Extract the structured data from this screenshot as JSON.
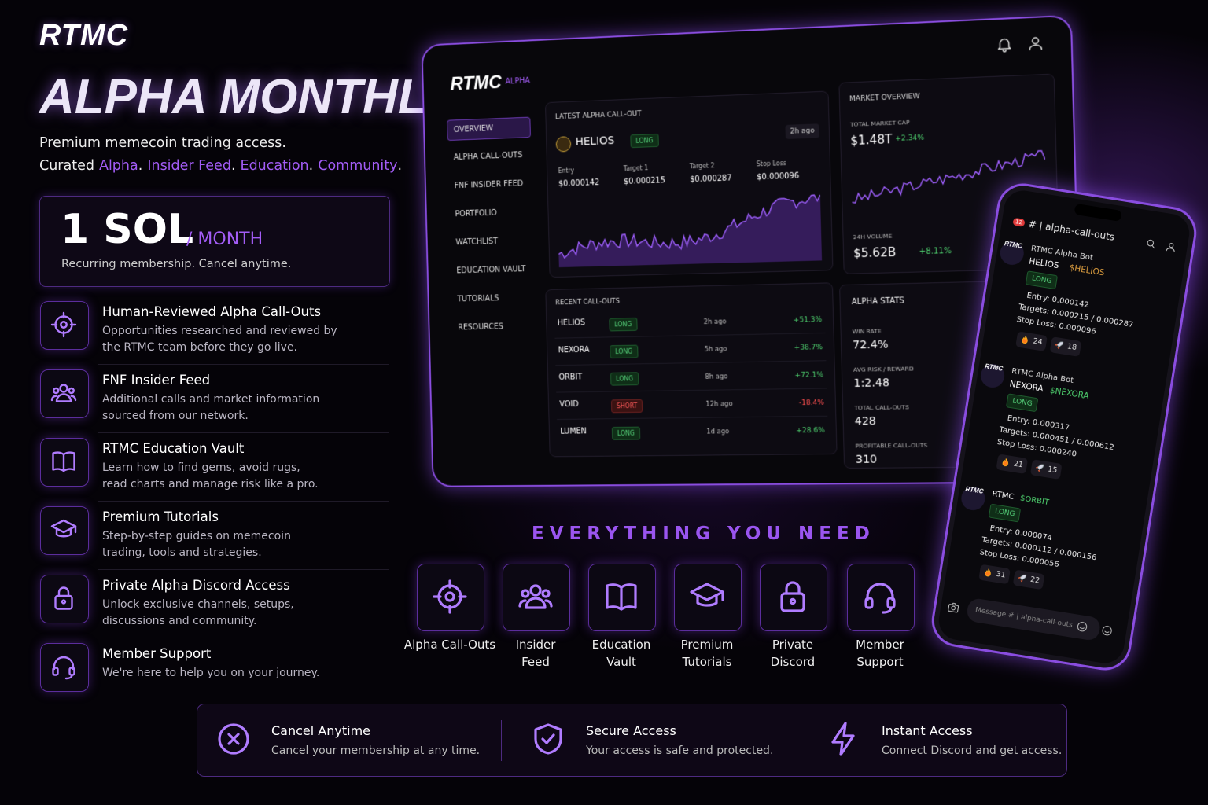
{
  "brand": "RTMC",
  "title": "ALPHA MONTHLY",
  "tagline": "Premium memecoin trading access.",
  "curated": {
    "lead": "Curated",
    "items": [
      "Alpha",
      "Insider Feed",
      "Education",
      "Community"
    ],
    "separator": "."
  },
  "price": {
    "amount": "1 SOL",
    "period": "/ MONTH",
    "note": "Recurring membership. Cancel anytime."
  },
  "features": [
    {
      "title": "Human-Reviewed Alpha Call-Outs",
      "desc": [
        "Opportunities researched and reviewed by",
        "the RTMC team before they go live."
      ]
    },
    {
      "title": "FNF Insider Feed",
      "desc": [
        "Additional calls and market information",
        "sourced from our network."
      ]
    },
    {
      "title": "RTMC Education Vault",
      "desc": [
        "Learn how to find gems, avoid rugs,",
        "read charts and manage risk like a pro."
      ]
    },
    {
      "title": "Premium Tutorials",
      "desc": [
        "Step-by-step guides on memecoin",
        "trading, tools and strategies."
      ]
    },
    {
      "title": "Private Alpha Discord Access",
      "desc": [
        "Unlock exclusive channels, setups,",
        "discussions and community."
      ]
    },
    {
      "title": "Member Support",
      "desc": [
        "We're here to help you on your journey."
      ]
    }
  ],
  "dashboard": {
    "brand": "RTMC",
    "sub": "ALPHA",
    "nav": [
      "OVERVIEW",
      "ALPHA CALL-OUTS",
      "FNF INSIDER FEED",
      "PORTFOLIO",
      "WATCHLIST",
      "EDUCATION VAULT",
      "TUTORIALS",
      "RESOURCES"
    ],
    "latest": {
      "heading": "LATEST ALPHA CALL-OUT",
      "token": "HELIOS",
      "side": "LONG",
      "time": "2h ago",
      "levels": [
        {
          "label": "Entry",
          "value": "$0.000142"
        },
        {
          "label": "Target 1",
          "value": "$0.000215"
        },
        {
          "label": "Target 2",
          "value": "$0.000287"
        },
        {
          "label": "Stop Loss",
          "value": "$0.000096"
        }
      ]
    },
    "market": {
      "heading": "MARKET OVERVIEW",
      "cap_label": "TOTAL MARKET CAP",
      "cap": "$1.48T",
      "cap_change": "+2.34%",
      "vol_label": "24H VOLUME",
      "vol": "$5.62B",
      "vol_change": "+8.11%"
    },
    "recent": {
      "heading": "RECENT CALL-OUTS",
      "rows": [
        [
          "HELIOS",
          "LONG",
          "2h ago",
          "+51.3%"
        ],
        [
          "NEXORA",
          "LONG",
          "5h ago",
          "+38.7%"
        ],
        [
          "ORBIT",
          "LONG",
          "8h ago",
          "+72.1%"
        ],
        [
          "VOID",
          "SHORT",
          "12h ago",
          "-18.4%"
        ],
        [
          "LUMEN",
          "LONG",
          "1d ago",
          "+28.6%"
        ]
      ]
    },
    "stats": {
      "heading": "ALPHA STATS",
      "items": [
        {
          "label": "WIN RATE",
          "value": "72.4%"
        },
        {
          "label": "AVG RISK / REWARD",
          "value": "1:2.48"
        },
        {
          "label": "TOTAL CALL-OUTS",
          "value": "428"
        },
        {
          "label": "PROFITABLE CALL-OUTS",
          "value": "310"
        }
      ]
    }
  },
  "phone": {
    "badge": "12",
    "channel": "# | alpha-call-outs",
    "avatar": "RTMC",
    "messages": [
      {
        "author": "RTMC Alpha Bot",
        "token": "HELIOS",
        "ticker": "$HELIOS",
        "side": "LONG",
        "lines": [
          "Entry: 0.000142",
          "Targets: 0.000215 / 0.000287",
          "Stop Loss: 0.000096"
        ],
        "reactions": [
          "24",
          "18"
        ]
      },
      {
        "author": "RTMC Alpha Bot",
        "token": "NEXORA",
        "ticker": "$NEXORA",
        "side": "LONG",
        "lines": [
          "Entry: 0.000317",
          "Targets: 0.000451 / 0.000612",
          "Stop Loss: 0.000240"
        ],
        "reactions": [
          "21",
          "15"
        ]
      },
      {
        "author": "RTMC",
        "ticker": "$ORBIT",
        "side": "LONG",
        "lines": [
          "Entry: 0.000074",
          "Targets: 0.000112 / 0.000156",
          "Stop Loss: 0.000056"
        ],
        "reactions": [
          "31",
          "22"
        ]
      }
    ],
    "placeholder": "Message # | alpha-call-outs"
  },
  "section": {
    "heading": "EVERYTHING YOU NEED",
    "tiles": [
      [
        "Alpha Call-Outs"
      ],
      [
        "Insider",
        "Feed"
      ],
      [
        "Education",
        "Vault"
      ],
      [
        "Premium",
        "Tutorials"
      ],
      [
        "Private",
        "Discord"
      ],
      [
        "Member",
        "Support"
      ]
    ]
  },
  "footer": [
    {
      "title": "Cancel Anytime",
      "desc": "Cancel your membership at any time."
    },
    {
      "title": "Secure Access",
      "desc": "Your access is safe and protected."
    },
    {
      "title": "Instant Access",
      "desc": "Connect Discord and get access."
    }
  ]
}
